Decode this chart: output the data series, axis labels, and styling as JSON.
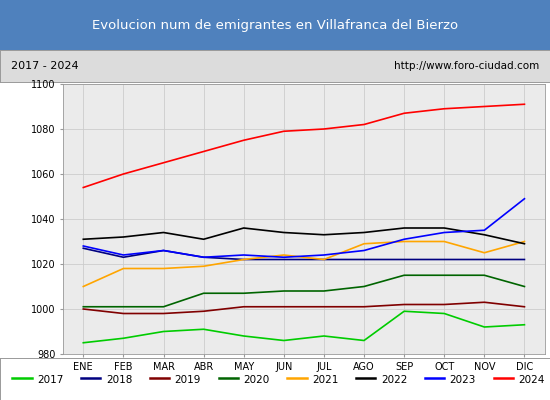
{
  "title": "Evolucion num de emigrantes en Villafranca del Bierzo",
  "subtitle_left": "2017 - 2024",
  "subtitle_right": "http://www.foro-ciudad.com",
  "title_bg_color": "#4f81bd",
  "title_text_color": "#ffffff",
  "subtitle_bg_color": "#dcdcdc",
  "plot_bg_color": "#ebebeb",
  "months": [
    "ENE",
    "FEB",
    "MAR",
    "ABR",
    "MAY",
    "JUN",
    "JUL",
    "AGO",
    "SEP",
    "OCT",
    "NOV",
    "DIC"
  ],
  "ylim": [
    980,
    1100
  ],
  "yticks": [
    980,
    1000,
    1020,
    1040,
    1060,
    1080,
    1100
  ],
  "series": {
    "2017": {
      "color": "#00cc00",
      "data": [
        985,
        987,
        990,
        991,
        988,
        986,
        988,
        986,
        999,
        998,
        992,
        993
      ]
    },
    "2018": {
      "color": "#000080",
      "data": [
        1027,
        1023,
        1026,
        1023,
        1022,
        1022,
        1022,
        1022,
        1022,
        1022,
        1022,
        1022
      ]
    },
    "2019": {
      "color": "#800000",
      "data": [
        1000,
        998,
        998,
        999,
        1001,
        1001,
        1001,
        1001,
        1002,
        1002,
        1003,
        1001
      ]
    },
    "2020": {
      "color": "#006400",
      "data": [
        1001,
        1001,
        1001,
        1007,
        1007,
        1008,
        1008,
        1010,
        1015,
        1015,
        1015,
        1010
      ]
    },
    "2021": {
      "color": "#ffa500",
      "data": [
        1010,
        1018,
        1018,
        1019,
        1022,
        1024,
        1022,
        1029,
        1030,
        1030,
        1025,
        1030
      ]
    },
    "2022": {
      "color": "#000000",
      "data": [
        1031,
        1032,
        1034,
        1031,
        1036,
        1034,
        1033,
        1034,
        1036,
        1036,
        1033,
        1029
      ]
    },
    "2023": {
      "color": "#0000ff",
      "data": [
        1028,
        1024,
        1026,
        1023,
        1024,
        1023,
        1024,
        1026,
        1031,
        1034,
        1035,
        1049
      ]
    },
    "2024": {
      "color": "#ff0000",
      "data": [
        1054,
        1060,
        1065,
        1070,
        1075,
        1079,
        1080,
        1082,
        1087,
        1089,
        1090,
        1091
      ]
    }
  },
  "legend_order": [
    "2017",
    "2018",
    "2019",
    "2020",
    "2021",
    "2022",
    "2023",
    "2024"
  ]
}
